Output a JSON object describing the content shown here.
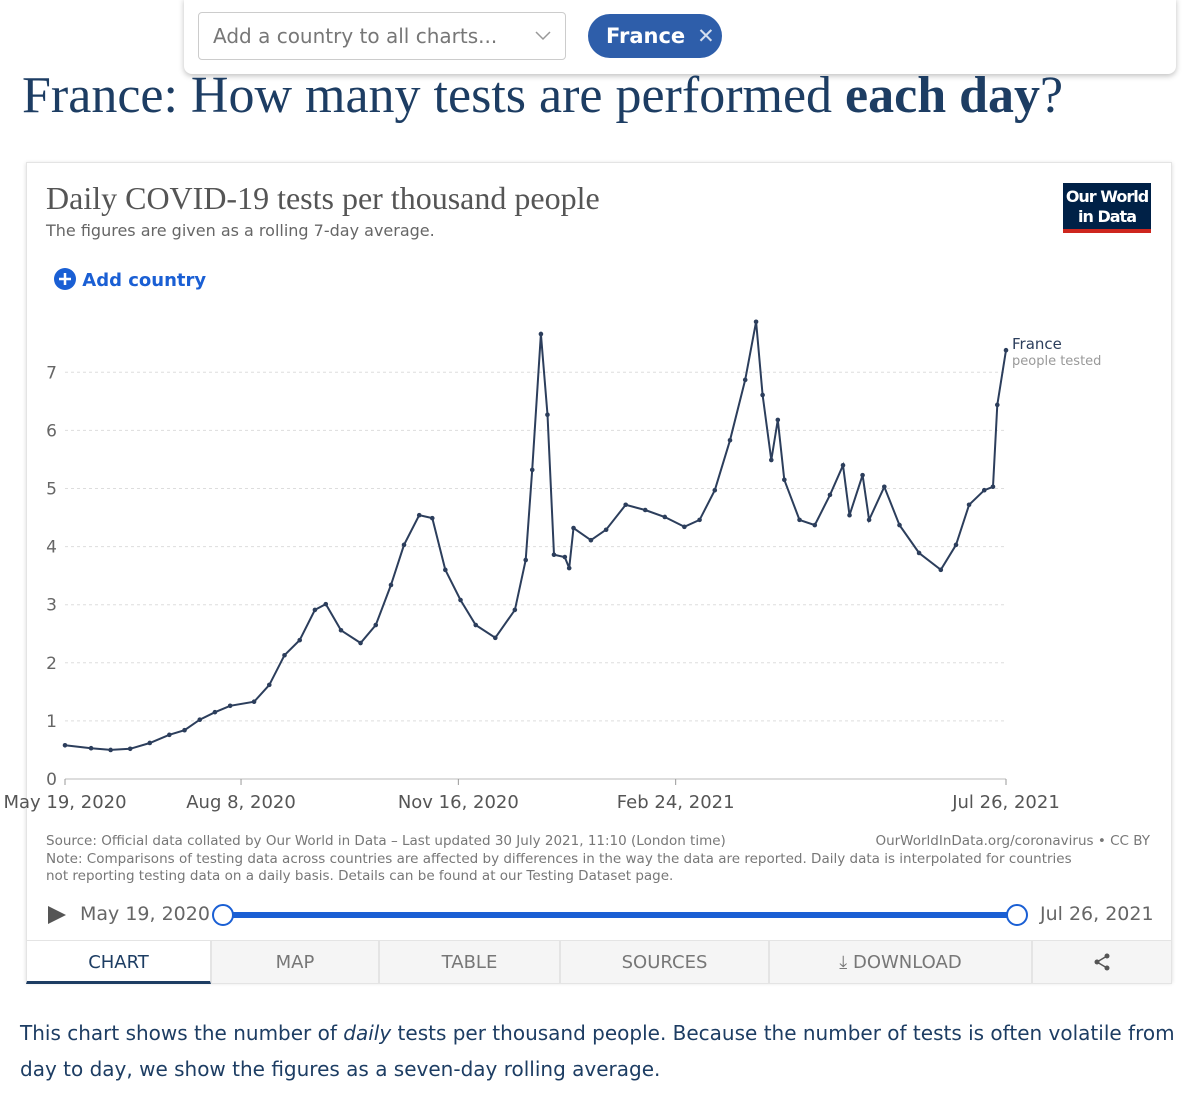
{
  "top_bar": {
    "search_placeholder": "Add a country to all charts...",
    "selected_country": "France"
  },
  "headline": [
    "France: How many tests are performed ",
    "each day",
    "?"
  ],
  "add_country": "Add country",
  "logo": [
    "Our World",
    "in Data"
  ],
  "chart_data": {
    "type": "line",
    "title": "Daily COVID-19 tests per thousand people",
    "subtitle": "The figures are given as a rolling 7-day average.",
    "x": [
      "2020-05-19",
      "2020-05-31",
      "2020-06-09",
      "2020-06-18",
      "2020-06-27",
      "2020-07-06",
      "2020-07-13",
      "2020-07-20",
      "2020-07-27",
      "2020-08-03",
      "2020-08-14",
      "2020-08-21",
      "2020-08-28",
      "2020-09-04",
      "2020-09-11",
      "2020-09-16",
      "2020-09-23",
      "2020-10-02",
      "2020-10-09",
      "2020-10-16",
      "2020-10-22",
      "2020-10-29",
      "2020-11-04",
      "2020-11-10",
      "2020-11-17",
      "2020-11-24",
      "2020-12-03",
      "2020-12-12",
      "2020-12-17",
      "2020-12-20",
      "2020-12-24",
      "2020-12-27",
      "2020-12-30",
      "2021-01-04",
      "2021-01-06",
      "2021-01-08",
      "2021-01-16",
      "2021-01-23",
      "2021-02-01",
      "2021-02-10",
      "2021-02-19",
      "2021-02-28",
      "2021-03-07",
      "2021-03-14",
      "2021-03-21",
      "2021-03-28",
      "2021-04-02",
      "2021-04-05",
      "2021-04-09",
      "2021-04-12",
      "2021-04-15",
      "2021-04-22",
      "2021-04-29",
      "2021-05-06",
      "2021-05-12",
      "2021-05-15",
      "2021-05-21",
      "2021-05-24",
      "2021-05-31",
      "2021-06-07",
      "2021-06-16",
      "2021-06-26",
      "2021-07-03",
      "2021-07-09",
      "2021-07-16",
      "2021-07-20",
      "2021-07-22",
      "2021-07-26"
    ],
    "series": [
      {
        "name": "France",
        "sublabel": "people tested",
        "color": "#2c3e5c",
        "values": [
          0.58,
          0.53,
          0.5,
          0.52,
          0.62,
          0.76,
          0.84,
          1.02,
          1.15,
          1.26,
          1.33,
          1.62,
          2.13,
          2.39,
          2.91,
          3.01,
          2.56,
          2.34,
          2.65,
          3.34,
          4.03,
          4.54,
          4.49,
          3.6,
          3.08,
          2.65,
          2.43,
          2.91,
          3.77,
          5.32,
          7.66,
          6.27,
          3.86,
          3.82,
          3.63,
          4.32,
          4.11,
          4.29,
          4.72,
          4.63,
          4.51,
          4.34,
          4.46,
          4.97,
          5.83,
          6.87,
          7.87,
          6.61,
          5.49,
          6.18,
          5.15,
          4.46,
          4.37,
          4.89,
          5.4,
          4.54,
          5.23,
          4.46,
          5.03,
          4.37,
          3.89,
          3.6,
          4.03,
          4.72,
          4.97,
          5.03,
          6.44,
          7.38
        ]
      }
    ],
    "xlim": [
      "2020-05-19",
      "2021-07-26"
    ],
    "xticks": [
      {
        "value": "2020-05-19",
        "label": "May 19, 2020"
      },
      {
        "value": "2020-08-08",
        "label": "Aug 8, 2020"
      },
      {
        "value": "2020-11-16",
        "label": "Nov 16, 2020"
      },
      {
        "value": "2021-02-24",
        "label": "Feb 24, 2021"
      },
      {
        "value": "2021-07-26",
        "label": "Jul 26, 2021"
      }
    ],
    "ylim": [
      0,
      7.9
    ],
    "yticks": [
      0,
      1,
      2,
      3,
      4,
      5,
      6,
      7
    ],
    "grid": true
  },
  "source": "Source: Official data collated by Our World in Data – Last updated 30 July 2021, 11:10 (London time)",
  "license": "OurWorldInData.org/coronavirus • CC BY",
  "note": [
    "Note: Comparisons of testing data across countries are affected by differences in the way the data are reported. Daily data is interpolated for countries",
    "not reporting testing data on a daily basis. Details can be found at our Testing Dataset page."
  ],
  "timeline": {
    "start": "May 19, 2020",
    "end": "Jul 26, 2021"
  },
  "tabs": [
    "CHART",
    "MAP",
    "TABLE",
    "SOURCES",
    "DOWNLOAD"
  ],
  "paragraph": [
    [
      "This chart shows the number of ",
      "daily",
      " tests per thousand people. Because the number of tests is often volatile from"
    ],
    [
      "day to day, we show the figures as a seven-day rolling average."
    ]
  ]
}
